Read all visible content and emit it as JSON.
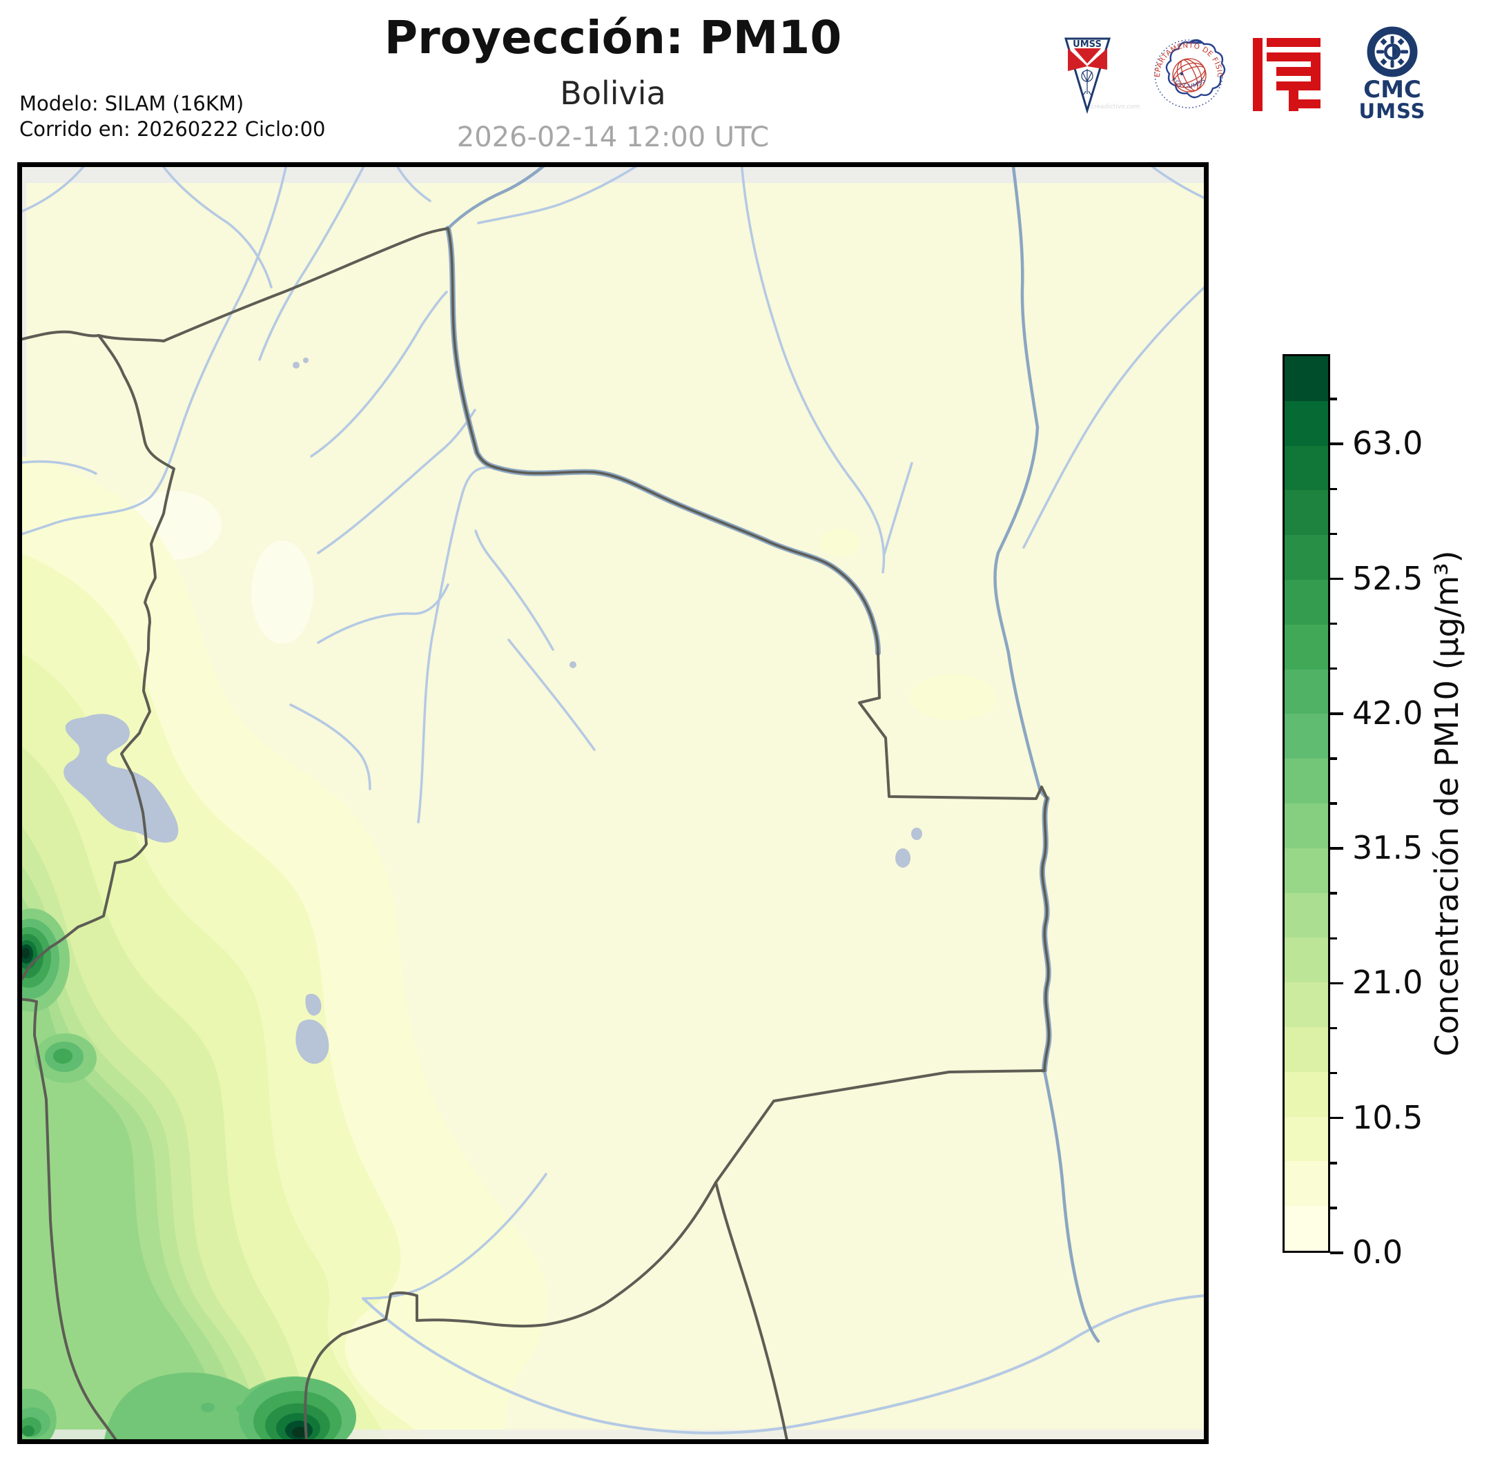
{
  "header": {
    "title": "Proyección: PM10",
    "subtitle": "Bolivia",
    "datetime": "2026-02-14 12:00 UTC",
    "model_line1": "Modelo: SILAM (16KM)",
    "model_line2": "Corrido en: 20260222 Ciclo:00"
  },
  "logos": {
    "umss_pennant": {
      "label": "UMSS",
      "watermark": "creadictivo.com"
    },
    "physics_seal": {
      "arc_top": "DEPARTAMENTO DE FÍSICA",
      "arc_bottom": "FCyT-UMSS"
    },
    "cmc": {
      "line1": "CMC",
      "line2": "UMSS"
    }
  },
  "colorbar": {
    "label": "Concentración de PM10 (µg/m³)",
    "unit": "µg/m³",
    "vmin": 0.0,
    "vmax": 70.0,
    "step": 3.5,
    "major_ticks": [
      "0.0",
      "10.5",
      "21.0",
      "31.5",
      "42.0",
      "52.5",
      "63.0"
    ],
    "colors": [
      "#ffffe5",
      "#fafdd3",
      "#f3fabf",
      "#e9f7b1",
      "#dcf1a5",
      "#cdeb9e",
      "#bce597",
      "#abde90",
      "#99d788",
      "#86cf80",
      "#73c678",
      "#60bc70",
      "#4fb264",
      "#40a857",
      "#339c4e",
      "#289046",
      "#1d833e",
      "#107739",
      "#056a33",
      "#004d2b"
    ]
  },
  "map": {
    "background": "#f9f9db",
    "pale_low": "#fdfdeb",
    "outside_domain": "#ededea",
    "border_color": "#5d5d55",
    "river_color": "#b4c9e4",
    "major_river_color": "#8ba6c2",
    "lake_color": "#b7c3d6",
    "hotspot_max_color": "#07361f",
    "frame_color": "#000000"
  }
}
